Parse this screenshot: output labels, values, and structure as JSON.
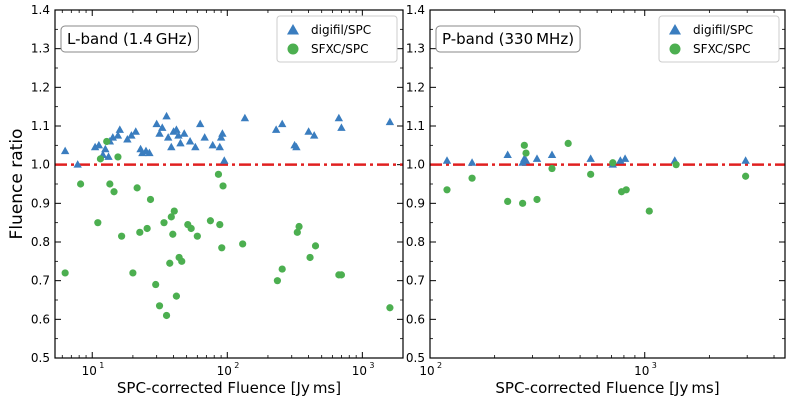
{
  "figure": {
    "ylabel": "Fluence ratio"
  },
  "chart_data": [
    {
      "type": "scatter",
      "title": "L-band (1.4 GHz)",
      "xlabel": "SPC-corrected Fluence [Jy ms]",
      "ylabel": "Fluence ratio",
      "xscale": "log",
      "xlim": [
        5.3,
        2000
      ],
      "ylim": [
        0.5,
        1.4
      ],
      "xticks": [
        10,
        100,
        1000
      ],
      "xtick_labels": [
        "10",
        "10",
        "10"
      ],
      "xtick_exps": [
        "1",
        "2",
        "3"
      ],
      "yticks": [
        0.5,
        0.6,
        0.7,
        0.8,
        0.9,
        1.0,
        1.1,
        1.2,
        1.3,
        1.4
      ],
      "ytick_labels": [
        "0.5",
        "0.6",
        "0.7",
        "0.8",
        "0.9",
        "1.0",
        "1.1",
        "1.2",
        "1.3",
        "1.4"
      ],
      "reference_line": {
        "y": 1.0,
        "color": "#e02020",
        "style": "dash-dot"
      },
      "legend_position": "top-right",
      "series": [
        {
          "name": "digifil/SPC",
          "marker": "triangle",
          "color": "#3a7dbf",
          "points": [
            [
              6.3,
              1.035
            ],
            [
              7.8,
              1.0
            ],
            [
              10.5,
              1.045
            ],
            [
              11.2,
              1.05
            ],
            [
              12.0,
              1.025
            ],
            [
              12.5,
              1.04
            ],
            [
              13.2,
              1.02
            ],
            [
              13.5,
              1.06
            ],
            [
              14.2,
              1.07
            ],
            [
              15.5,
              1.075
            ],
            [
              16.0,
              1.09
            ],
            [
              18.2,
              1.065
            ],
            [
              19.5,
              1.075
            ],
            [
              21.0,
              1.085
            ],
            [
              22.8,
              1.04
            ],
            [
              23.5,
              1.03
            ],
            [
              25.0,
              1.035
            ],
            [
              26.5,
              1.03
            ],
            [
              30.0,
              1.105
            ],
            [
              31.5,
              1.08
            ],
            [
              33.0,
              1.095
            ],
            [
              35.5,
              1.125
            ],
            [
              36.5,
              1.07
            ],
            [
              38.5,
              1.045
            ],
            [
              40.0,
              1.085
            ],
            [
              42.0,
              1.09
            ],
            [
              43.5,
              1.075
            ],
            [
              45.0,
              1.055
            ],
            [
              48.0,
              1.08
            ],
            [
              53.0,
              1.06
            ],
            [
              58.0,
              1.045
            ],
            [
              63.0,
              1.105
            ],
            [
              68.0,
              1.07
            ],
            [
              78.0,
              1.05
            ],
            [
              88.0,
              1.045
            ],
            [
              90.0,
              1.07
            ],
            [
              92.0,
              1.08
            ],
            [
              95.0,
              1.01
            ],
            [
              135.0,
              1.12
            ],
            [
              230.0,
              1.09
            ],
            [
              255.0,
              1.105
            ],
            [
              315.0,
              1.05
            ],
            [
              325.0,
              1.045
            ],
            [
              400.0,
              1.085
            ],
            [
              440.0,
              1.075
            ],
            [
              670.0,
              1.12
            ],
            [
              700.0,
              1.095
            ],
            [
              1600.0,
              1.11
            ]
          ]
        },
        {
          "name": "SFXC/SPC",
          "marker": "circle",
          "color": "#4caf50",
          "points": [
            [
              6.3,
              0.72
            ],
            [
              8.2,
              0.95
            ],
            [
              11.0,
              0.85
            ],
            [
              11.5,
              1.015
            ],
            [
              12.8,
              1.06
            ],
            [
              13.5,
              0.95
            ],
            [
              14.5,
              0.93
            ],
            [
              15.5,
              1.02
            ],
            [
              16.5,
              0.815
            ],
            [
              20.0,
              0.72
            ],
            [
              21.5,
              0.94
            ],
            [
              22.5,
              0.825
            ],
            [
              25.5,
              0.835
            ],
            [
              27.0,
              0.91
            ],
            [
              29.5,
              0.69
            ],
            [
              31.5,
              0.635
            ],
            [
              34.0,
              0.85
            ],
            [
              35.5,
              0.61
            ],
            [
              37.5,
              0.745
            ],
            [
              38.5,
              0.865
            ],
            [
              39.5,
              0.82
            ],
            [
              40.5,
              0.88
            ],
            [
              42.0,
              0.66
            ],
            [
              44.0,
              0.76
            ],
            [
              46.0,
              0.75
            ],
            [
              51.0,
              0.845
            ],
            [
              54.0,
              0.835
            ],
            [
              60.0,
              0.815
            ],
            [
              75.0,
              0.855
            ],
            [
              86.0,
              0.975
            ],
            [
              88.0,
              0.845
            ],
            [
              91.0,
              0.785
            ],
            [
              93.0,
              0.945
            ],
            [
              130.0,
              0.795
            ],
            [
              235.0,
              0.7
            ],
            [
              255.0,
              0.73
            ],
            [
              330.0,
              0.825
            ],
            [
              340.0,
              0.84
            ],
            [
              410.0,
              0.76
            ],
            [
              450.0,
              0.79
            ],
            [
              670.0,
              0.715
            ],
            [
              700.0,
              0.715
            ],
            [
              1600.0,
              0.63
            ]
          ]
        }
      ]
    },
    {
      "type": "scatter",
      "title": "P-band (330 MHz)",
      "xlabel": "SPC-corrected Fluence [Jy ms]",
      "xscale": "log",
      "xlim": [
        100,
        4500
      ],
      "ylim": [
        0.5,
        1.4
      ],
      "xticks": [
        100,
        1000
      ],
      "xtick_labels": [
        "10",
        "10"
      ],
      "xtick_exps": [
        "2",
        "3"
      ],
      "yticks": [
        0.5,
        0.6,
        0.7,
        0.8,
        0.9,
        1.0,
        1.1,
        1.2,
        1.3,
        1.4
      ],
      "ytick_labels": [
        "0.5",
        "0.6",
        "0.7",
        "0.8",
        "0.9",
        "1.0",
        "1.1",
        "1.2",
        "1.3",
        "1.4"
      ],
      "reference_line": {
        "y": 1.0,
        "color": "#e02020",
        "style": "dash-dot"
      },
      "legend_position": "top-right",
      "series": [
        {
          "name": "digifil/SPC",
          "marker": "triangle",
          "color": "#3a7dbf",
          "points": [
            [
              120,
              1.01
            ],
            [
              157,
              1.005
            ],
            [
              230,
              1.025
            ],
            [
              270,
              1.005
            ],
            [
              275,
              1.015
            ],
            [
              280,
              1.01
            ],
            [
              315,
              1.015
            ],
            [
              370,
              1.025
            ],
            [
              560,
              1.015
            ],
            [
              710,
              1.0
            ],
            [
              770,
              1.01
            ],
            [
              810,
              1.015
            ],
            [
              1380,
              1.01
            ],
            [
              2950,
              1.01
            ]
          ]
        },
        {
          "name": "SFXC/SPC",
          "marker": "circle",
          "color": "#4caf50",
          "points": [
            [
              120,
              0.935
            ],
            [
              157,
              0.965
            ],
            [
              230,
              0.905
            ],
            [
              270,
              0.9
            ],
            [
              275,
              1.05
            ],
            [
              280,
              1.03
            ],
            [
              315,
              0.91
            ],
            [
              370,
              0.99
            ],
            [
              440,
              1.055
            ],
            [
              560,
              0.975
            ],
            [
              710,
              1.005
            ],
            [
              780,
              0.93
            ],
            [
              820,
              0.935
            ],
            [
              1050,
              0.88
            ],
            [
              1400,
              1.0
            ],
            [
              2950,
              0.97
            ]
          ]
        }
      ]
    }
  ]
}
